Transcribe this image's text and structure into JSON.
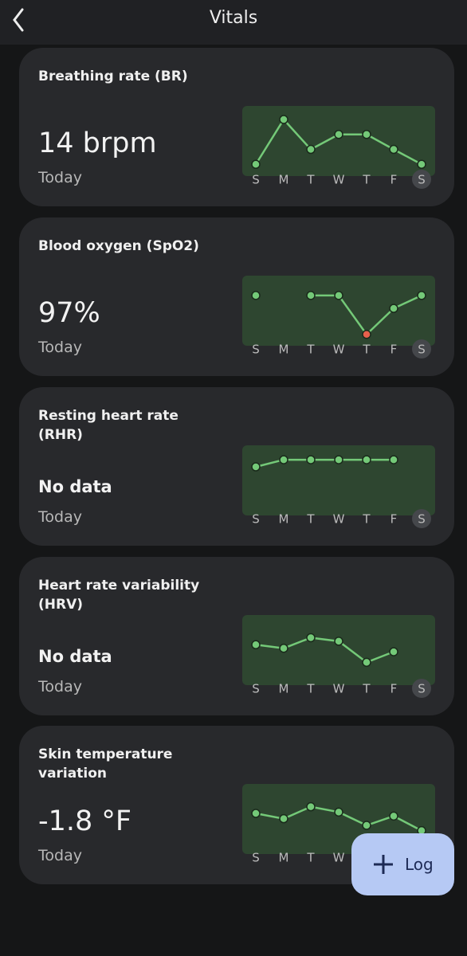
{
  "header": {
    "title": "Vitals"
  },
  "days": [
    "S",
    "M",
    "T",
    "W",
    "T",
    "F",
    "S"
  ],
  "cards": [
    {
      "title": "Breathing rate (BR)",
      "value": "14 brpm",
      "period": "Today",
      "chart": {
        "type": "line",
        "values": [
          14,
          17,
          15,
          16,
          16,
          15,
          14
        ],
        "ylim": [
          13.8,
          17.8
        ],
        "color": "#74c978"
      }
    },
    {
      "title": "Blood oxygen (SpO2)",
      "value": "97%",
      "period": "Today",
      "chart": {
        "type": "line",
        "values": [
          97,
          null,
          97,
          97,
          94,
          96,
          97
        ],
        "ylim": [
          93.8,
          98.4
        ],
        "color": "#74c978",
        "alert_index": 4,
        "alert_color": "#e8604c"
      }
    },
    {
      "title": "Resting heart rate (RHR)",
      "value": "No data",
      "period": "Today",
      "chart": {
        "type": "line",
        "values": [
          61,
          62,
          62,
          62,
          62,
          62,
          null
        ],
        "ylim": [
          55.4,
          63.8
        ],
        "color": "#74c978"
      }
    },
    {
      "title": "Heart rate variability (HRV)",
      "value": "No data",
      "period": "Today",
      "chart": {
        "type": "line",
        "values": [
          40,
          39,
          42,
          41,
          35,
          38,
          null
        ],
        "ylim": [
          31,
          48
        ],
        "color": "#74c978"
      }
    },
    {
      "title": "Skin temperature variation",
      "value": "-1.8 °F",
      "period": "Today",
      "chart": {
        "type": "line",
        "values": [
          -0.5,
          -0.9,
          0,
          -0.4,
          -1.4,
          -0.7,
          -1.8
        ],
        "ylim": [
          -2.9,
          1.6
        ],
        "color": "#74c978"
      }
    }
  ],
  "fab": {
    "label": "Log"
  }
}
